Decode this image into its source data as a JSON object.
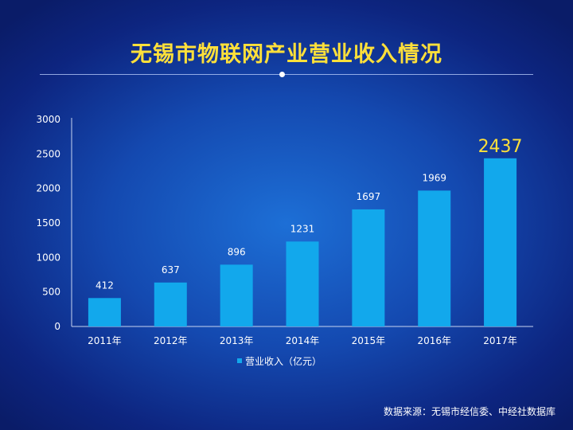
{
  "title": "无锡市物联网产业营业收入情况",
  "source": "数据来源：无锡市经信委、中经社数据库",
  "colors": {
    "title": "#ffe03a",
    "bar": "#12a8ec",
    "axis": "#c8d4f0",
    "label": "#ffffff"
  },
  "chart_data": {
    "type": "bar",
    "categories": [
      "2011年",
      "2012年",
      "2013年",
      "2014年",
      "2015年",
      "2016年",
      "2017年"
    ],
    "series": [
      {
        "name": "营业收入（亿元）",
        "values": [
          412,
          637,
          896,
          1231,
          1697,
          1969,
          2437
        ]
      }
    ],
    "data_labels": [
      "412",
      "637",
      "896",
      "1231",
      "1697",
      "1969",
      "2437"
    ],
    "yticks": [
      0,
      500,
      1000,
      1500,
      2000,
      2500,
      3000
    ],
    "ylim": [
      0,
      3000
    ],
    "grid": false,
    "legend": "bottom-center",
    "highlight_last_label": true
  }
}
